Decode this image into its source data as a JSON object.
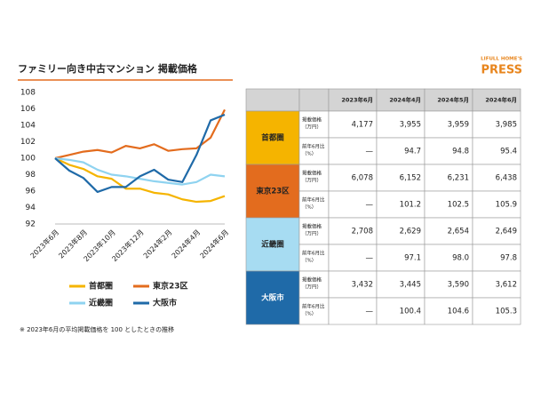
{
  "header": {
    "title": "ファミリー向き中古マンション  掲載価格",
    "logo_top": "LIFULL HOME'S",
    "logo_main": "PRESS"
  },
  "chart_data": {
    "type": "line",
    "categories": [
      "2023年6月",
      null,
      "2023年8月",
      null,
      "2023年10月",
      null,
      "2023年12月",
      null,
      "2024年2月",
      null,
      "2024年4月",
      null,
      "2024年6月"
    ],
    "series": [
      {
        "name": "首都圏",
        "color": "#f5b400",
        "values": [
          100,
          99.2,
          98.7,
          97.8,
          97.5,
          96.3,
          96.3,
          95.8,
          95.6,
          95.0,
          94.7,
          94.8,
          95.4
        ]
      },
      {
        "name": "東京23区",
        "color": "#e36c1e",
        "values": [
          100,
          100.4,
          100.8,
          101.0,
          100.7,
          101.5,
          101.2,
          101.7,
          100.9,
          101.1,
          101.2,
          102.5,
          105.9
        ]
      },
      {
        "name": "近畿圏",
        "color": "#8fd3f0",
        "values": [
          100,
          99.8,
          99.5,
          98.6,
          98.0,
          97.8,
          97.5,
          97.2,
          97.0,
          96.8,
          97.1,
          98.0,
          97.8
        ]
      },
      {
        "name": "大阪市",
        "color": "#1f6aa8",
        "values": [
          100,
          98.5,
          97.6,
          95.9,
          96.5,
          96.5,
          97.8,
          98.6,
          97.4,
          97.1,
          100.4,
          104.6,
          105.3
        ]
      }
    ],
    "ylim": [
      92,
      108
    ],
    "yticks": [
      92,
      94,
      96,
      98,
      100,
      102,
      104,
      106,
      108
    ],
    "grid": false
  },
  "table": {
    "columns": [
      "2023年6月",
      "2024年4月",
      "2024年5月",
      "2024年6月"
    ],
    "regions": [
      {
        "name": "首都圏",
        "color": "#f5b400",
        "text_color": "#222222",
        "rows": [
          {
            "label": [
              "掲載価格",
              "（万円）"
            ],
            "cells": [
              "4,177",
              "3,955",
              "3,959",
              "3,985"
            ]
          },
          {
            "label": [
              "前年6月比",
              "（%）"
            ],
            "cells": [
              "—",
              "94.7",
              "94.8",
              "95.4"
            ]
          }
        ]
      },
      {
        "name": "東京23区",
        "color": "#e36c1e",
        "text_color": "#222222",
        "rows": [
          {
            "label": [
              "掲載価格",
              "（万円）"
            ],
            "cells": [
              "6,078",
              "6,152",
              "6,231",
              "6,438"
            ]
          },
          {
            "label": [
              "前年6月比",
              "（%）"
            ],
            "cells": [
              "—",
              "101.2",
              "102.5",
              "105.9"
            ]
          }
        ]
      },
      {
        "name": "近畿圏",
        "color": "#a7dcf2",
        "text_color": "#222222",
        "rows": [
          {
            "label": [
              "掲載価格",
              "（万円）"
            ],
            "cells": [
              "2,708",
              "2,629",
              "2,654",
              "2,649"
            ]
          },
          {
            "label": [
              "前年6月比",
              "（%）"
            ],
            "cells": [
              "—",
              "97.1",
              "98.0",
              "97.8"
            ]
          }
        ]
      },
      {
        "name": "大阪市",
        "color": "#1f6aa8",
        "text_color": "#ffffff",
        "rows": [
          {
            "label": [
              "掲載価格",
              "（万円）"
            ],
            "cells": [
              "3,432",
              "3,445",
              "3,590",
              "3,612"
            ]
          },
          {
            "label": [
              "前年6月比",
              "（%）"
            ],
            "cells": [
              "—",
              "100.4",
              "104.6",
              "105.3"
            ]
          }
        ]
      }
    ]
  },
  "footnote": "※ 2023年6月の平均掲載価格を 100 としたときの推移"
}
